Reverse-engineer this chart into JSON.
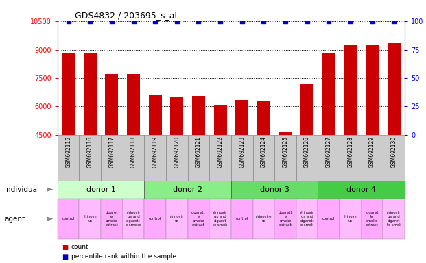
{
  "title": "GDS4832 / 203695_s_at",
  "samples": [
    "GSM692115",
    "GSM692116",
    "GSM692117",
    "GSM692118",
    "GSM692119",
    "GSM692120",
    "GSM692121",
    "GSM692122",
    "GSM692123",
    "GSM692124",
    "GSM692125",
    "GSM692126",
    "GSM692127",
    "GSM692128",
    "GSM692129",
    "GSM692130"
  ],
  "counts": [
    8800,
    8860,
    7720,
    7720,
    6620,
    6500,
    6560,
    6070,
    6340,
    6310,
    4620,
    7200,
    8820,
    9280,
    9250,
    9370
  ],
  "percentile_ranks": [
    100,
    100,
    100,
    100,
    100,
    100,
    100,
    100,
    100,
    100,
    100,
    100,
    100,
    100,
    100,
    100
  ],
  "ylim_left": [
    4500,
    10500
  ],
  "ylim_right": [
    0,
    100
  ],
  "yticks_left": [
    4500,
    6000,
    7500,
    9000,
    10500
  ],
  "yticks_right": [
    0,
    25,
    50,
    75,
    100
  ],
  "bar_color": "#cc0000",
  "dot_color": "#0000cc",
  "bar_width": 0.6,
  "dot_marker": "s",
  "dot_size": 18,
  "donors": [
    {
      "label": "donor 1",
      "start": 0,
      "end": 4,
      "color": "#ccffcc"
    },
    {
      "label": "donor 2",
      "start": 4,
      "end": 8,
      "color": "#88ee88"
    },
    {
      "label": "donor 3",
      "start": 8,
      "end": 12,
      "color": "#66dd66"
    },
    {
      "label": "donor 4",
      "start": 12,
      "end": 16,
      "color": "#44cc44"
    }
  ],
  "agent_display": [
    "control",
    "rhinovir\nus",
    "cigaret\nte\nsmoke\nextract",
    "rhinovir\nus and\ncigarett\ne smoke",
    "control",
    "rhinovir\nus",
    "cigarett\ne\nsmoke\nextract",
    "rhinovir\nus and\ncigaret\nte smok",
    "control",
    "rhinovire\nus",
    "cigarett\ne\nsmoke\nextract",
    "rhinovir\nus and\ncigarett\ne smok",
    "control",
    "rhinovir\nus",
    "cigaret\nte\nsmoke\nextract",
    "rhinovir\nus and\ncigaret\nte smok"
  ],
  "agent_colors": [
    "#ffaaff",
    "#ffbbff",
    "#ffaaff",
    "#ffbbff",
    "#ffaaff",
    "#ffbbff",
    "#ffaaff",
    "#ffbbff",
    "#ffaaff",
    "#ffbbff",
    "#ffaaff",
    "#ffbbff",
    "#ffaaff",
    "#ffbbff",
    "#ffaaff",
    "#ffbbff"
  ],
  "tick_bg_color": "#cccccc",
  "fig_bg": "#ffffff",
  "legend_count_color": "#cc0000",
  "legend_dot_color": "#0000cc"
}
